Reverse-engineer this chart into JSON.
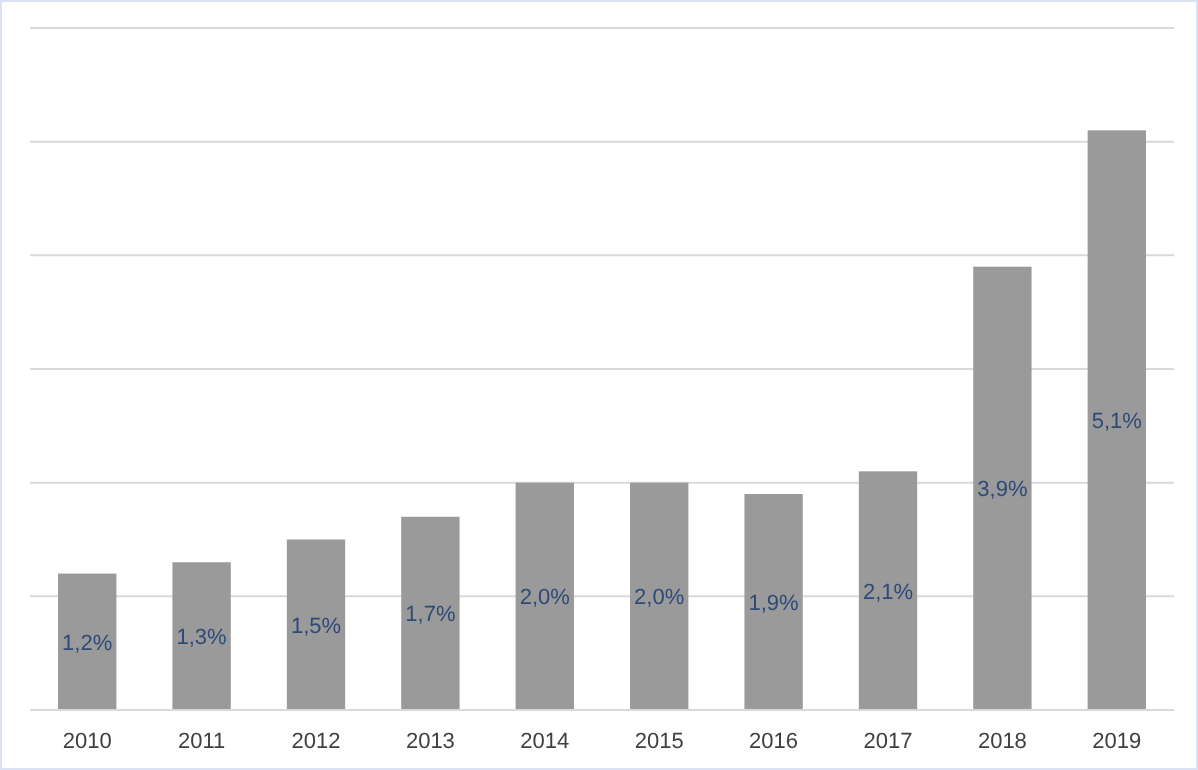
{
  "chart_data": {
    "type": "bar",
    "categories": [
      "2010",
      "2011",
      "2012",
      "2013",
      "2014",
      "2015",
      "2016",
      "2017",
      "2018",
      "2019"
    ],
    "values": [
      1.2,
      1.3,
      1.5,
      1.7,
      2.0,
      2.0,
      1.9,
      2.1,
      3.9,
      5.1
    ],
    "value_labels": [
      "1,2%",
      "1,3%",
      "1,5%",
      "1,7%",
      "2,0%",
      "2,0%",
      "1,9%",
      "2,1%",
      "3,9%",
      "5,1%"
    ],
    "color": "#9a9a9a",
    "ylim": [
      0,
      6
    ],
    "yticks": [
      {
        "value": 0,
        "label": null
      },
      {
        "value": 1,
        "label": null
      },
      {
        "value": 2,
        "label": null
      },
      {
        "value": 3,
        "label": null
      },
      {
        "value": 4,
        "label": null
      },
      {
        "value": 5,
        "label": null
      },
      {
        "value": 6,
        "label": null
      }
    ],
    "grid": "y",
    "tick_labels": "x"
  }
}
